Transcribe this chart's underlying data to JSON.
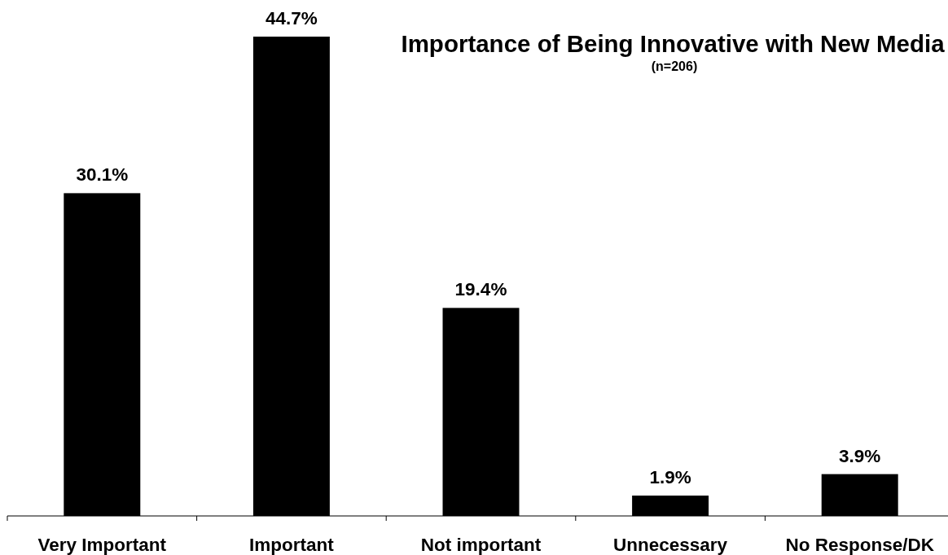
{
  "chart_data": {
    "type": "bar",
    "title": "Importance of Being Innovative with New Media",
    "subtitle": "(n=206)",
    "categories": [
      "Very Important",
      "Important",
      "Not important",
      "Unnecessary",
      "No Response/DK"
    ],
    "values": [
      30.1,
      44.7,
      19.4,
      1.9,
      3.9
    ],
    "value_labels": [
      "30.1%",
      "44.7%",
      "19.4%",
      "1.9%",
      "3.9%"
    ],
    "color": "#000000",
    "tick_labels": "x"
  }
}
